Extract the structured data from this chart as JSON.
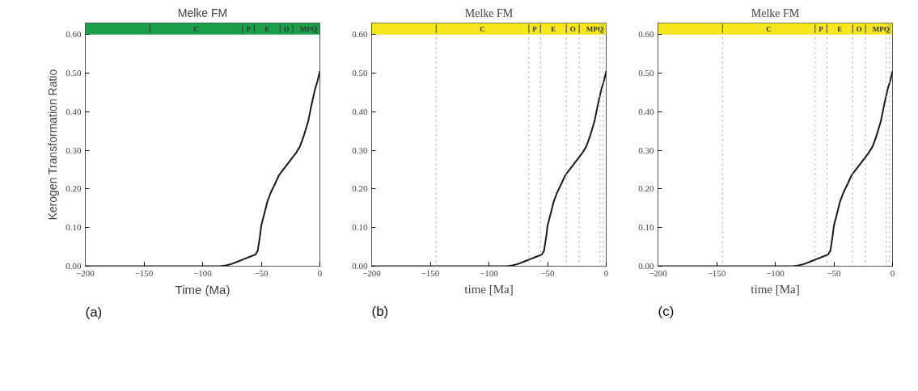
{
  "chart_data": [
    {
      "type": "line",
      "title": "Melke FM",
      "xlabel": "Time (Ma)",
      "ylabel": "Kerogen Transformation Ratio",
      "annotations": [
        "(a)",
        "C",
        "P",
        "E",
        "O",
        "M",
        "PQ"
      ],
      "x": [
        -200,
        -100,
        -85,
        -80,
        -75,
        -70,
        -65,
        -60,
        -55,
        -53,
        -51,
        -50,
        -47,
        -45,
        -42,
        -38,
        -35,
        -30,
        -25,
        -20,
        -17,
        -14,
        -10,
        -7,
        -4,
        -2,
        0
      ],
      "series": [
        {
          "color": "#1a1a1a",
          "values": [
            0,
            0,
            0,
            0.002,
            0.006,
            0.012,
            0.018,
            0.024,
            0.03,
            0.04,
            0.08,
            0.105,
            0.14,
            0.165,
            0.19,
            0.215,
            0.235,
            0.255,
            0.275,
            0.295,
            0.31,
            0.335,
            0.375,
            0.42,
            0.46,
            0.48,
            0.505
          ]
        }
      ],
      "xlim": [
        -200,
        0
      ],
      "ylim": [
        0,
        0.63
      ],
      "xticks": [
        -200,
        -150,
        -100,
        -50,
        0
      ],
      "yticks": [
        {
          "value": 0,
          "label": "0.00"
        },
        {
          "value": 0.1,
          "label": "0.10"
        },
        {
          "value": 0.2,
          "label": "0.20"
        },
        {
          "value": 0.3,
          "label": "0.30"
        },
        {
          "value": 0.4,
          "label": "0.40"
        },
        {
          "value": 0.5,
          "label": "0.50"
        },
        {
          "value": 0.6,
          "label": "0.60"
        }
      ],
      "bands": [
        {
          "axis": "y",
          "from": 0.6,
          "to": 0.63,
          "color": "#1a9e4a"
        }
      ],
      "grid": false
    },
    {
      "type": "line",
      "title": "Melke FM",
      "xlabel": "time [Ma]",
      "annotations": [
        "(b)",
        "C",
        "P",
        "E",
        "O",
        "M",
        "PQ"
      ],
      "x": [
        -200,
        -100,
        -85,
        -80,
        -75,
        -70,
        -65,
        -60,
        -55,
        -53,
        -51,
        -50,
        -47,
        -45,
        -42,
        -38,
        -35,
        -30,
        -25,
        -20,
        -17,
        -14,
        -10,
        -7,
        -4,
        -2,
        0
      ],
      "series": [
        {
          "color": "#1a1a1a",
          "values": [
            0,
            0,
            0,
            0.002,
            0.006,
            0.012,
            0.018,
            0.024,
            0.03,
            0.04,
            0.08,
            0.105,
            0.14,
            0.165,
            0.19,
            0.215,
            0.235,
            0.255,
            0.275,
            0.295,
            0.31,
            0.335,
            0.375,
            0.42,
            0.46,
            0.48,
            0.505
          ]
        }
      ],
      "xlim": [
        -200,
        0
      ],
      "ylim": [
        0,
        0.63
      ],
      "xticks": [
        -200,
        -150,
        -100,
        -50,
        0
      ],
      "yticks": [
        {
          "value": 0,
          "label": "0.00"
        },
        {
          "value": 0.1,
          "label": "0.10"
        },
        {
          "value": 0.2,
          "label": "0.20"
        },
        {
          "value": 0.3,
          "label": "0.30"
        },
        {
          "value": 0.4,
          "label": "0.40"
        },
        {
          "value": 0.5,
          "label": "0.50"
        },
        {
          "value": 0.6,
          "label": "0.60"
        }
      ],
      "bands": [
        {
          "axis": "y",
          "from": 0.6,
          "to": 0.63,
          "color": "#f5e61e"
        }
      ],
      "ref_lines": [
        {
          "axis": "x",
          "value": -145,
          "color": "#a0a0a0",
          "line_style": "dotted"
        },
        {
          "axis": "x",
          "value": -66,
          "color": "#a0a0a0",
          "line_style": "dotted"
        },
        {
          "axis": "x",
          "value": -56,
          "color": "#a0a0a0",
          "line_style": "dotted"
        },
        {
          "axis": "x",
          "value": -34,
          "color": "#a0a0a0",
          "line_style": "dotted"
        },
        {
          "axis": "x",
          "value": -23,
          "color": "#a0a0a0",
          "line_style": "dotted"
        },
        {
          "axis": "x",
          "value": -5.3,
          "color": "#a0a0a0",
          "line_style": "dotted"
        },
        {
          "axis": "x",
          "value": -2.6,
          "color": "#a0a0a0",
          "line_style": "dotted"
        }
      ],
      "grid": false
    },
    {
      "type": "line",
      "title": "Melke FM",
      "xlabel": "time [Ma]",
      "annotations": [
        "(c)",
        "C",
        "P",
        "E",
        "O",
        "M",
        "PQ"
      ],
      "x": [
        -200,
        -100,
        -85,
        -80,
        -75,
        -70,
        -65,
        -60,
        -55,
        -53,
        -51,
        -50,
        -47,
        -45,
        -42,
        -38,
        -35,
        -30,
        -25,
        -20,
        -17,
        -14,
        -10,
        -7,
        -4,
        -2,
        0
      ],
      "series": [
        {
          "color": "#1a1a1a",
          "values": [
            0,
            0,
            0,
            0.002,
            0.006,
            0.012,
            0.018,
            0.024,
            0.03,
            0.04,
            0.08,
            0.105,
            0.14,
            0.165,
            0.19,
            0.215,
            0.235,
            0.255,
            0.275,
            0.295,
            0.31,
            0.335,
            0.375,
            0.42,
            0.46,
            0.48,
            0.505
          ]
        }
      ],
      "xlim": [
        -200,
        0
      ],
      "ylim": [
        0,
        0.63
      ],
      "xticks": [
        -200,
        -150,
        -100,
        -50,
        0
      ],
      "yticks": [
        {
          "value": 0,
          "label": "0.00"
        },
        {
          "value": 0.1,
          "label": "0.10"
        },
        {
          "value": 0.2,
          "label": "0.20"
        },
        {
          "value": 0.3,
          "label": "0.30"
        },
        {
          "value": 0.4,
          "label": "0.40"
        },
        {
          "value": 0.5,
          "label": "0.50"
        },
        {
          "value": 0.6,
          "label": "0.60"
        }
      ],
      "bands": [
        {
          "axis": "y",
          "from": 0.6,
          "to": 0.63,
          "color": "#f5e61e"
        }
      ],
      "ref_lines": [
        {
          "axis": "x",
          "value": -145,
          "color": "#a0a0a0",
          "line_style": "dotted"
        },
        {
          "axis": "x",
          "value": -66,
          "color": "#a0a0a0",
          "line_style": "dotted"
        },
        {
          "axis": "x",
          "value": -56,
          "color": "#a0a0a0",
          "line_style": "dotted"
        },
        {
          "axis": "x",
          "value": -34,
          "color": "#a0a0a0",
          "line_style": "dotted"
        },
        {
          "axis": "x",
          "value": -23,
          "color": "#a0a0a0",
          "line_style": "dotted"
        },
        {
          "axis": "x",
          "value": -5.3,
          "color": "#a0a0a0",
          "line_style": "dotted"
        },
        {
          "axis": "x",
          "value": -2.6,
          "color": "#a0a0a0",
          "line_style": "dotted"
        }
      ],
      "grid": false
    }
  ]
}
